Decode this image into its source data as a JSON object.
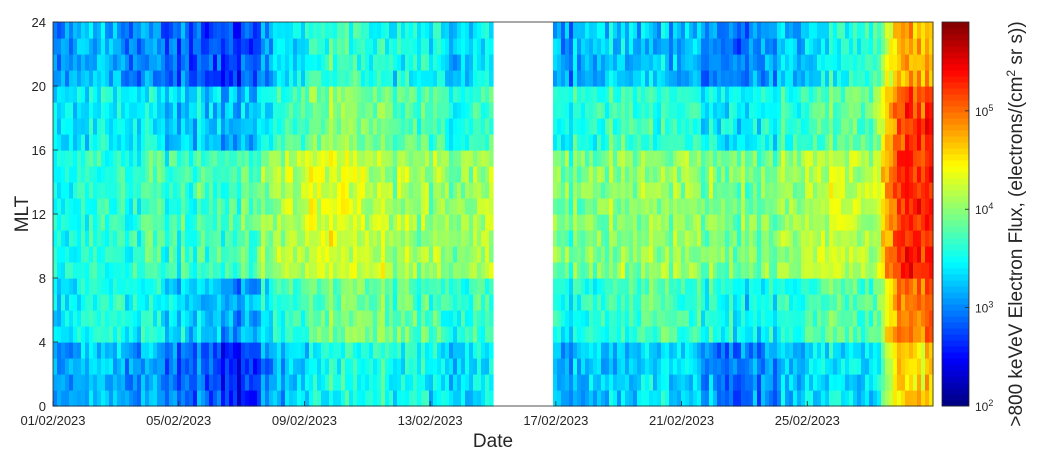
{
  "chart_data": {
    "type": "heatmap",
    "title": "",
    "xlabel": "Date",
    "ylabel": "MLT",
    "x_tick_labels": [
      "01/02/2023",
      "05/02/2023",
      "09/02/2023",
      "13/02/2023",
      "17/02/2023",
      "21/02/2023",
      "25/02/2023"
    ],
    "y_tick_labels": [
      "0",
      "4",
      "8",
      "12",
      "16",
      "20",
      "24"
    ],
    "ylim": [
      0,
      24
    ],
    "x_range": [
      "01/02/2023",
      "01/03/2023"
    ],
    "data_gap": [
      "15/02/2023",
      "16/02/2023"
    ],
    "colorbar": {
      "label_prefix": ">800 keVeV Electron Flux, (electrons/(cm",
      "label_sup": "2",
      "label_suffix": " sr s))",
      "scale": "log",
      "range": [
        100,
        800000
      ],
      "ticks": [
        {
          "base": "10",
          "exp": "2",
          "value": 100
        },
        {
          "base": "10",
          "exp": "3",
          "value": 1000
        },
        {
          "base": "10",
          "exp": "4",
          "value": 10000
        },
        {
          "base": "10",
          "exp": "5",
          "value": 100000
        }
      ],
      "colormap": "jet"
    },
    "daily_log10_flux_by_mlt_band": {
      "days": [
        "01/02/2023",
        "02/02/2023",
        "03/02/2023",
        "04/02/2023",
        "05/02/2023",
        "06/02/2023",
        "07/02/2023",
        "08/02/2023",
        "09/02/2023",
        "10/02/2023",
        "11/02/2023",
        "12/02/2023",
        "13/02/2023",
        "14/02/2023",
        "15/02/2023",
        "16/02/2023",
        "17/02/2023",
        "18/02/2023",
        "19/02/2023",
        "20/02/2023",
        "21/02/2023",
        "22/02/2023",
        "23/02/2023",
        "24/02/2023",
        "25/02/2023",
        "26/02/2023",
        "27/02/2023",
        "28/02/2023"
      ],
      "night_0_4": [
        3.0,
        3.1,
        3.2,
        3.1,
        3.0,
        2.8,
        2.6,
        3.1,
        3.4,
        3.6,
        3.6,
        3.5,
        3.4,
        3.3,
        null,
        null,
        3.0,
        3.2,
        3.3,
        3.4,
        3.3,
        3.1,
        2.9,
        3.1,
        3.4,
        3.4,
        3.3,
        4.6
      ],
      "dawn_4_8": [
        3.3,
        3.4,
        3.5,
        3.5,
        3.4,
        3.2,
        3.1,
        3.5,
        3.8,
        3.9,
        3.9,
        3.8,
        3.7,
        3.6,
        null,
        null,
        3.4,
        3.6,
        3.7,
        3.8,
        3.7,
        3.6,
        3.4,
        3.5,
        3.8,
        3.8,
        3.7,
        5.0
      ],
      "day_8_16": [
        3.5,
        3.5,
        3.6,
        3.7,
        3.7,
        3.7,
        3.8,
        4.0,
        4.3,
        4.3,
        4.2,
        4.1,
        4.0,
        4.0,
        null,
        null,
        3.8,
        3.9,
        4.0,
        4.1,
        4.0,
        4.0,
        3.9,
        3.9,
        4.2,
        4.2,
        4.1,
        5.3
      ],
      "dusk_16_20": [
        3.3,
        3.3,
        3.4,
        3.4,
        3.3,
        3.3,
        3.2,
        3.5,
        3.9,
        4.0,
        3.9,
        3.8,
        3.7,
        3.6,
        null,
        null,
        3.4,
        3.6,
        3.7,
        3.7,
        3.6,
        3.5,
        3.4,
        3.5,
        3.8,
        3.8,
        3.8,
        5.2
      ],
      "night_20_24": [
        3.0,
        3.1,
        3.1,
        3.0,
        2.9,
        2.8,
        2.7,
        3.2,
        3.6,
        3.7,
        3.6,
        3.5,
        3.4,
        3.3,
        null,
        null,
        3.0,
        3.2,
        3.3,
        3.3,
        3.2,
        3.1,
        2.9,
        3.1,
        3.4,
        3.5,
        3.6,
        4.8
      ]
    }
  }
}
